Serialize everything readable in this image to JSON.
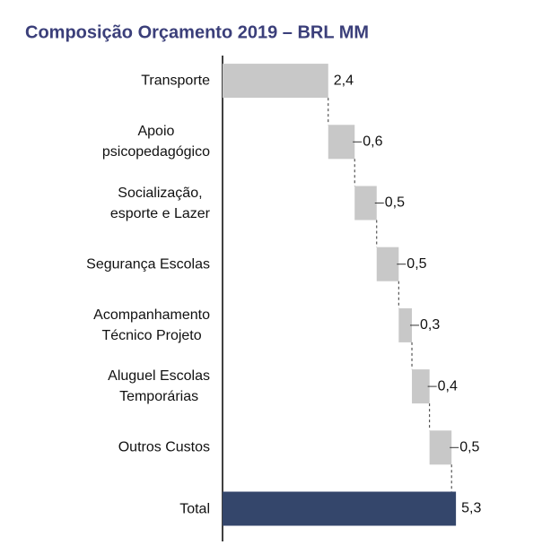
{
  "chart_data": {
    "type": "waterfall",
    "title": "Composição Orçamento 2019 – BRL MM",
    "categories": [
      "Transporte",
      "Apoio\npsicopedagógico",
      "Socialização,\nesporte e Lazer",
      "Segurança Escolas",
      "Acompanhamento\nTécnico Projeto",
      "Aluguel Escolas\nTemporárias",
      "Outros Custos",
      "Total"
    ],
    "values": [
      2.4,
      0.6,
      0.5,
      0.5,
      0.3,
      0.4,
      0.5,
      5.3
    ],
    "value_labels": [
      "2,4",
      "0,6",
      "0,5",
      "0,5",
      "0,3",
      "0,4",
      "0,5",
      "5,3"
    ],
    "color": "#c8c8c8",
    "total_color": "#34466b",
    "xlim": [
      0,
      6.5
    ]
  }
}
